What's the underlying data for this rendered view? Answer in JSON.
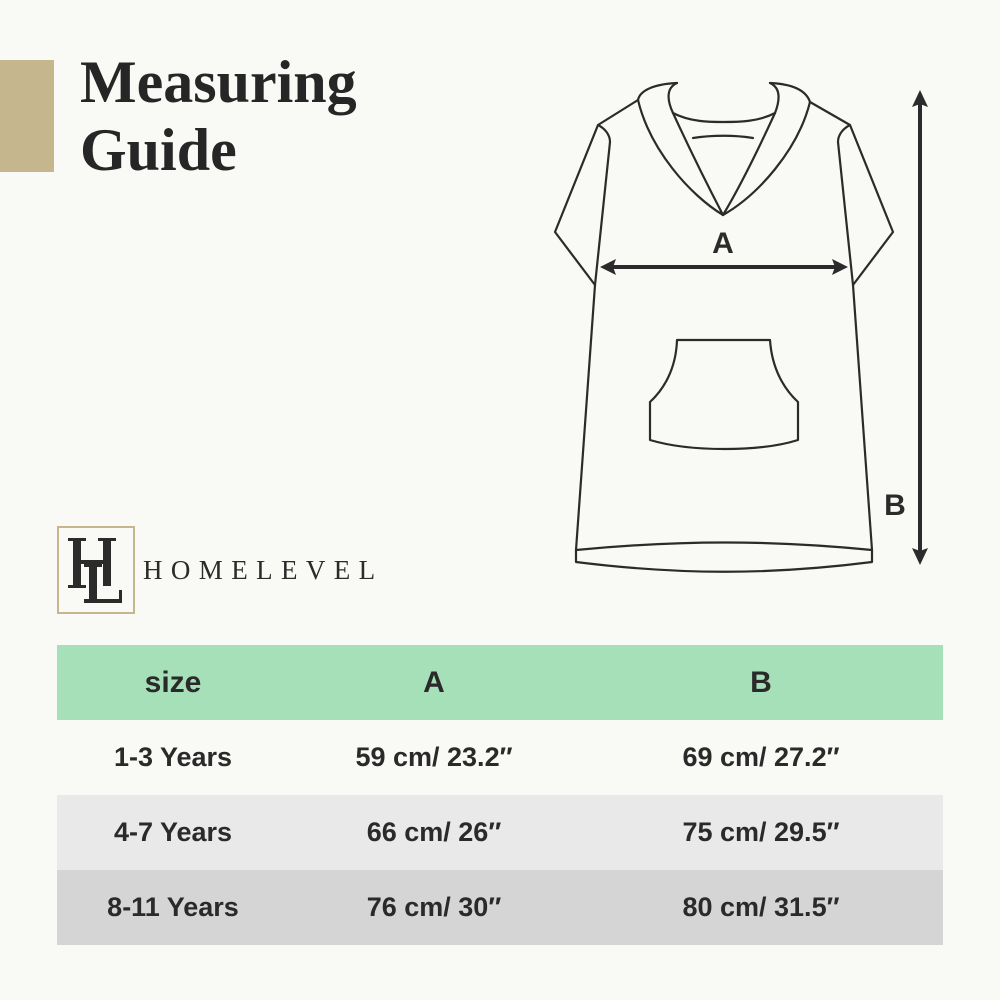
{
  "title": {
    "line1": "Measuring",
    "line2": "Guide"
  },
  "brand": {
    "name": "HOMELEVEL",
    "monogram": "HL"
  },
  "diagram": {
    "label_a": "A",
    "label_b": "B"
  },
  "colors": {
    "accent_gold": "#c6b68d",
    "header_green": "#a5e0b8",
    "row_light": "#e9e9e9",
    "row_dark": "#d5d5d5"
  },
  "table": {
    "headers": [
      "size",
      "A",
      "B"
    ],
    "rows": [
      [
        "1-3 Years",
        "59 cm/ 23.2″",
        "69 cm/ 27.2″"
      ],
      [
        "4-7 Years",
        "66 cm/ 26″",
        "75 cm/ 29.5″"
      ],
      [
        "8-11 Years",
        "76 cm/ 30″",
        "80 cm/ 31.5″"
      ]
    ]
  }
}
